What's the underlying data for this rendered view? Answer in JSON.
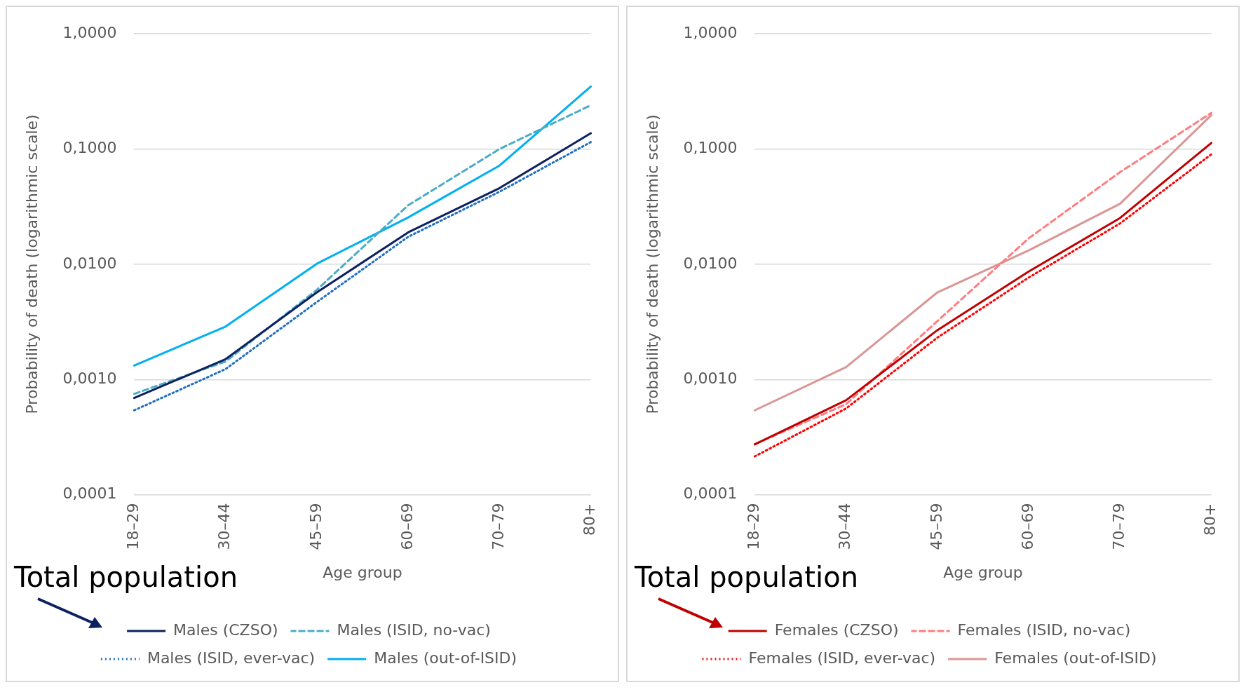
{
  "chart_data": [
    {
      "type": "line",
      "ylabel": "Probability of death (logarithmic scale)",
      "xlabel": "Age group",
      "categories": [
        "18–29",
        "30–44",
        "45–59",
        "60–69",
        "70–79",
        "80+"
      ],
      "log": "y",
      "ylim": [
        0.0001,
        1
      ],
      "yticks": [
        {
          "value": 0.0001,
          "label": "0,0001"
        },
        {
          "value": 0.001,
          "label": "0,0010"
        },
        {
          "value": 0.01,
          "label": "0,0100"
        },
        {
          "value": 0.1,
          "label": "0,1000"
        },
        {
          "value": 1,
          "label": "1,0000"
        }
      ],
      "grid": "y",
      "legend": "bottom",
      "marker": "none",
      "annotations": [
        "Total population"
      ],
      "series": [
        {
          "name": "Males (CZSO)",
          "color": "#0d2160",
          "line_style": "solid",
          "values": [
            0.00069,
            0.0015,
            0.0057,
            0.0189,
            0.0458,
            0.137
          ]
        },
        {
          "name": "Males (ISID, no-vac)",
          "color": "#4bacc6",
          "line_style": "dashed",
          "values": [
            0.00075,
            0.00143,
            0.006,
            0.0325,
            0.1,
            0.24
          ]
        },
        {
          "name": "Males (ISID, ever-vac)",
          "color": "#1f6fc4",
          "line_style": "dotted",
          "values": [
            0.00054,
            0.00123,
            0.0047,
            0.0173,
            0.0426,
            0.115
          ]
        },
        {
          "name": "Males (out-of-ISID)",
          "color": "#00b0f0",
          "line_style": "solid",
          "values": [
            0.00132,
            0.00288,
            0.0101,
            0.0255,
            0.0718,
            0.349
          ]
        }
      ]
    },
    {
      "type": "line",
      "ylabel": "Probability of death (logarithmic scale)",
      "xlabel": "Age group",
      "categories": [
        "18–29",
        "30–44",
        "45–59",
        "60–69",
        "70–79",
        "80+"
      ],
      "log": "y",
      "ylim": [
        0.0001,
        1
      ],
      "yticks": [
        {
          "value": 0.0001,
          "label": "0,0001"
        },
        {
          "value": 0.001,
          "label": "0,0010"
        },
        {
          "value": 0.01,
          "label": "0,0100"
        },
        {
          "value": 0.1,
          "label": "0,1000"
        },
        {
          "value": 1,
          "label": "1,0000"
        }
      ],
      "grid": "y",
      "legend": "bottom",
      "marker": "none",
      "annotations": [
        "Total population"
      ],
      "series": [
        {
          "name": "Females (CZSO)",
          "color": "#c00000",
          "line_style": "solid",
          "values": [
            0.000273,
            0.00066,
            0.00268,
            0.00865,
            0.0252,
            0.113
          ]
        },
        {
          "name": "Females (ISID, no-vac)",
          "color": "#ff7c80",
          "line_style": "dashed",
          "values": [
            0.000275,
            0.00061,
            0.00321,
            0.0168,
            0.063,
            0.206
          ]
        },
        {
          "name": "Females (ISID, ever-vac)",
          "color": "#ff0000",
          "line_style": "dotted",
          "values": [
            0.000215,
            0.00056,
            0.00231,
            0.00767,
            0.0226,
            0.09
          ]
        },
        {
          "name": "Females (out-of-ISID)",
          "color": "#d99694",
          "line_style": "solid",
          "values": [
            0.00054,
            0.00128,
            0.0057,
            0.0132,
            0.0335,
            0.197
          ]
        }
      ]
    }
  ]
}
